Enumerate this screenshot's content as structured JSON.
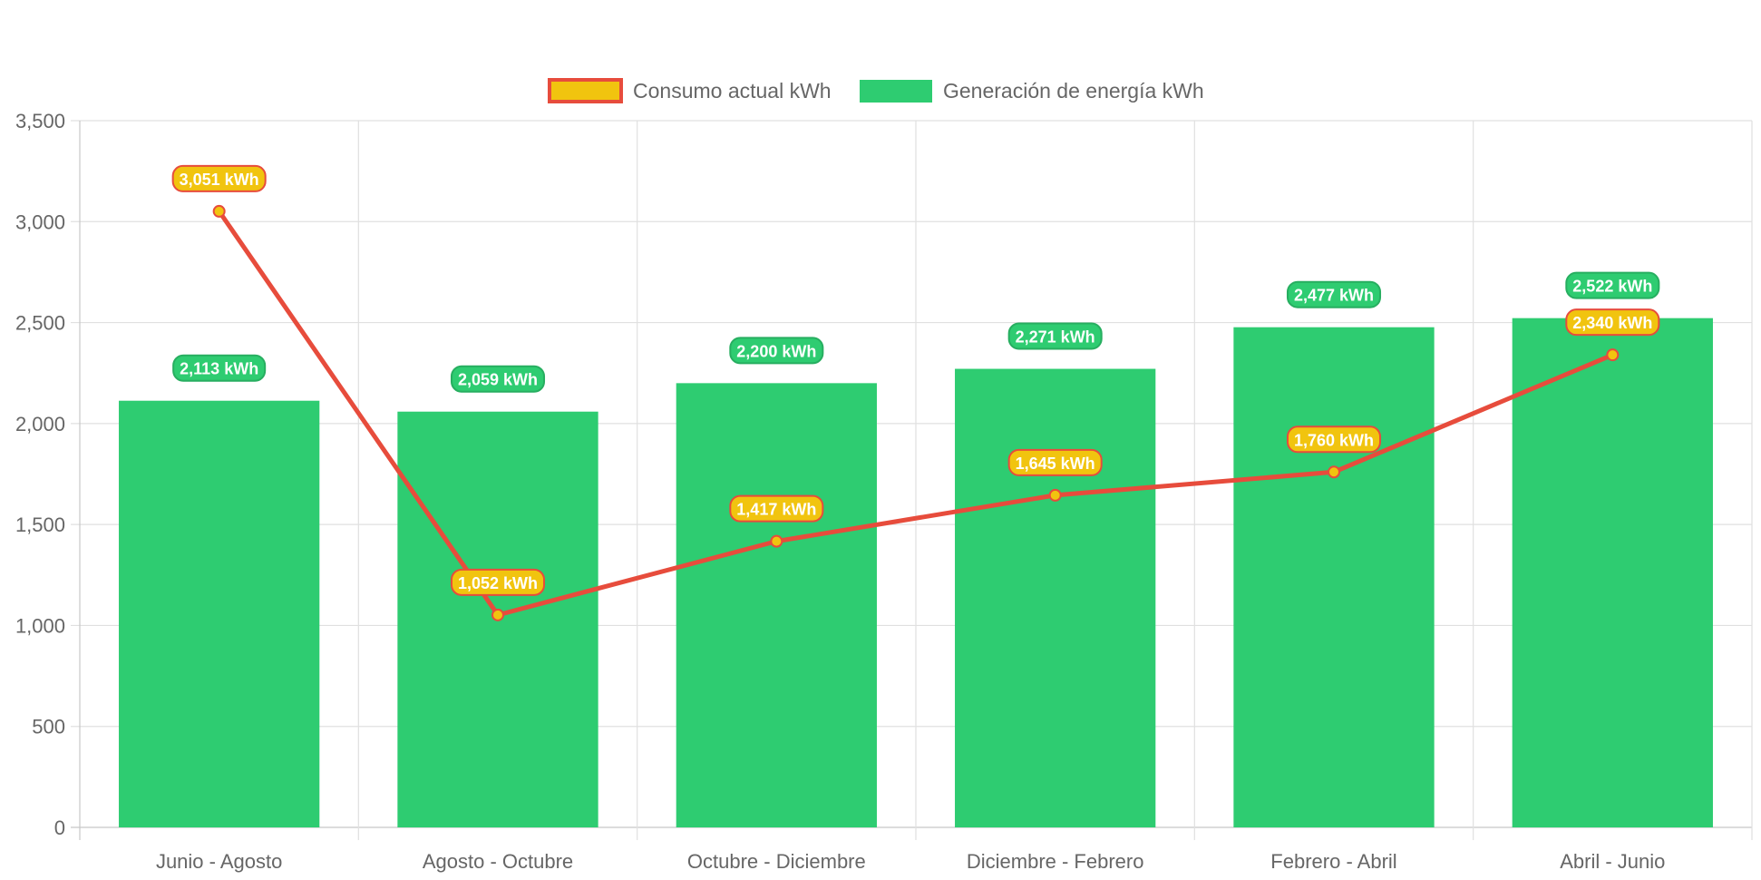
{
  "colors": {
    "bar": "#2ecc71",
    "bar_label_border": "#27ae60",
    "line": "#e74c3c",
    "point": "#f1c40f",
    "line_label_bg": "#f1c40f",
    "grid": "#e0e0e0",
    "axis_text": "#666666"
  },
  "chart_data": {
    "type": "bar",
    "title": "",
    "xlabel": "",
    "ylabel": "",
    "ylim": [
      0,
      3500
    ],
    "y_ticks": [
      0,
      500,
      1000,
      1500,
      2000,
      2500,
      3000,
      3500
    ],
    "y_tick_labels": [
      "0",
      "500",
      "1,000",
      "1,500",
      "2,000",
      "2,500",
      "3,000",
      "3,500"
    ],
    "grid": true,
    "legend_position": "top-center",
    "categories": [
      "Junio - Agosto",
      "Agosto - Octubre",
      "Octubre - Diciembre",
      "Diciembre - Febrero",
      "Febrero - Abril",
      "Abril - Junio"
    ],
    "series": [
      {
        "name": "Consumo actual kWh",
        "type": "line",
        "values": [
          3051,
          1052,
          1417,
          1645,
          1760,
          2340
        ],
        "labels": [
          "3,051 kWh",
          "1,052 kWh",
          "1,417 kWh",
          "1,645 kWh",
          "1,760 kWh",
          "2,340 kWh"
        ]
      },
      {
        "name": "Generación de energía kWh",
        "type": "bar",
        "values": [
          2113,
          2059,
          2200,
          2271,
          2477,
          2522
        ],
        "labels": [
          "2,113 kWh",
          "2,059 kWh",
          "2,200 kWh",
          "2,271 kWh",
          "2,477 kWh",
          "2,522 kWh"
        ]
      }
    ]
  }
}
